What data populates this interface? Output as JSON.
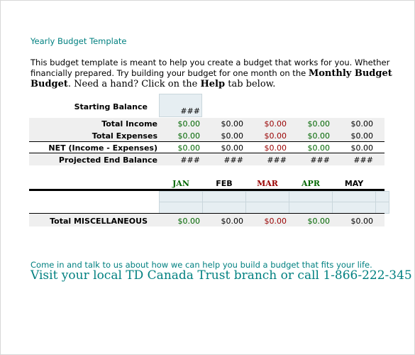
{
  "title": "Yearly Budget Template",
  "intro": {
    "line1": "This budget template is meant to help you create a budget that works for you. Whether",
    "line2_a": "financially prepared. Try building your budget for one month on the ",
    "line2_b": "Monthly Budget",
    "line3_a": "Budget",
    "line3_b": ". Need a hand? Click on the ",
    "line3_c": "Help",
    "line3_d": " tab below."
  },
  "starting_balance": {
    "label": "Starting Balance",
    "value": "###"
  },
  "rows": [
    {
      "label": "Total Income",
      "values": [
        "$0.00",
        "$0.00",
        "$0.00",
        "$0.00",
        "$0.00"
      ]
    },
    {
      "label": "Total Expenses",
      "values": [
        "$0.00",
        "$0.00",
        "$0.00",
        "$0.00",
        "$0.00"
      ]
    },
    {
      "label": "NET (Income - Expenses)",
      "values": [
        "$0.00",
        "$0.00",
        "$0.00",
        "$0.00",
        "$0.00"
      ]
    },
    {
      "label": "Projected End Balance",
      "values": [
        "###",
        "###",
        "###",
        "###",
        "###"
      ]
    }
  ],
  "months": [
    "JAN",
    "FEB",
    "MAR",
    "APR",
    "MAY"
  ],
  "misc": {
    "label": "Total MISCELLANEOUS",
    "values": [
      "$0.00",
      "$0.00",
      "$0.00",
      "$0.00",
      "$0.00"
    ]
  },
  "footer": {
    "line1": "Come in and talk to us about how we can help you build a budget that fits your life.",
    "line2": "Visit your local TD Canada Trust branch or call 1-866-222-345"
  },
  "colors": {
    "teal": "#008080",
    "green": "#006600",
    "red": "#990000"
  }
}
